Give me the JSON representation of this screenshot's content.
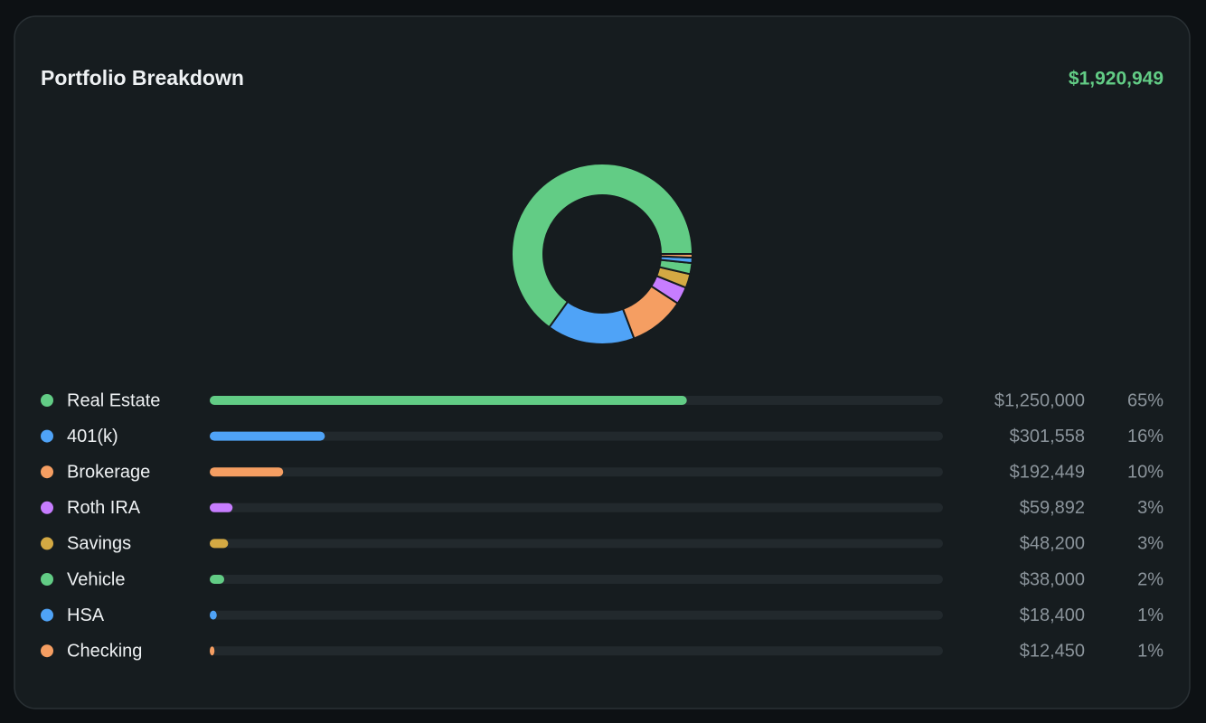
{
  "chart_data": {
    "type": "donut",
    "title": "Portfolio Breakdown",
    "total": "$1,920,949",
    "categories": [
      "Real Estate",
      "401(k)",
      "Brokerage",
      "Roth IRA",
      "Savings",
      "Vehicle",
      "HSA",
      "Checking"
    ],
    "values": [
      1250000,
      301558,
      192449,
      59892,
      48200,
      38000,
      18400,
      12450
    ],
    "value_labels": [
      "$1,250,000",
      "$301,558",
      "$192,449",
      "$59,892",
      "$48,200",
      "$38,000",
      "$18,400",
      "$12,450"
    ],
    "shares": [
      65,
      16,
      10,
      3,
      3,
      2,
      1,
      1
    ],
    "share_labels": [
      "65%",
      "16%",
      "10%",
      "3%",
      "3%",
      "2%",
      "1%",
      "1%"
    ],
    "colors": [
      "#62cc85",
      "#4fa3f7",
      "#f59e62",
      "#c77dff",
      "#d4a943",
      "#62cc85",
      "#4fa3f7",
      "#f59e62"
    ]
  }
}
